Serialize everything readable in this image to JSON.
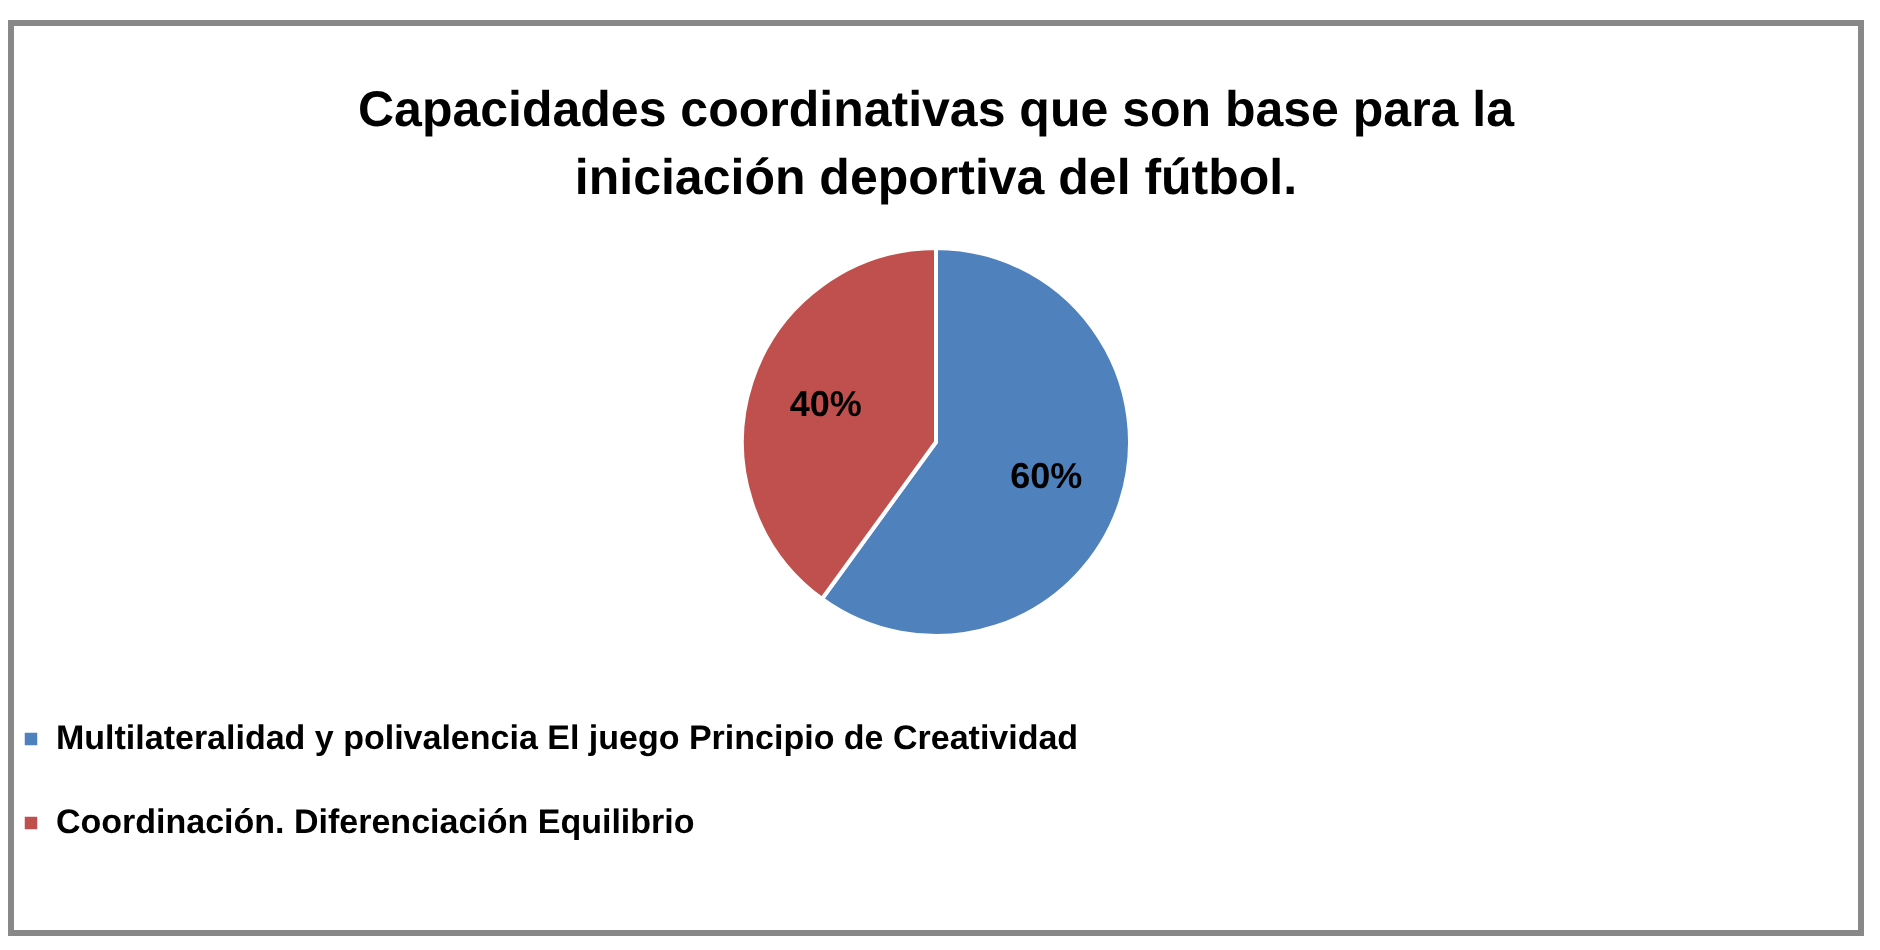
{
  "chart_data": {
    "type": "pie",
    "title": "Capacidades coordinativas que son base para la iniciación deportiva del fútbol.",
    "categories": [
      "Multilateralidad y polivalencia  El juego Principio de Creatividad",
      "Coordinación. Diferenciación Equilibrio"
    ],
    "values": [
      60,
      40
    ],
    "colors": [
      "#4f81bd",
      "#c0504d"
    ],
    "value_labels": [
      "60%",
      "40%"
    ],
    "legend": "bottom"
  }
}
